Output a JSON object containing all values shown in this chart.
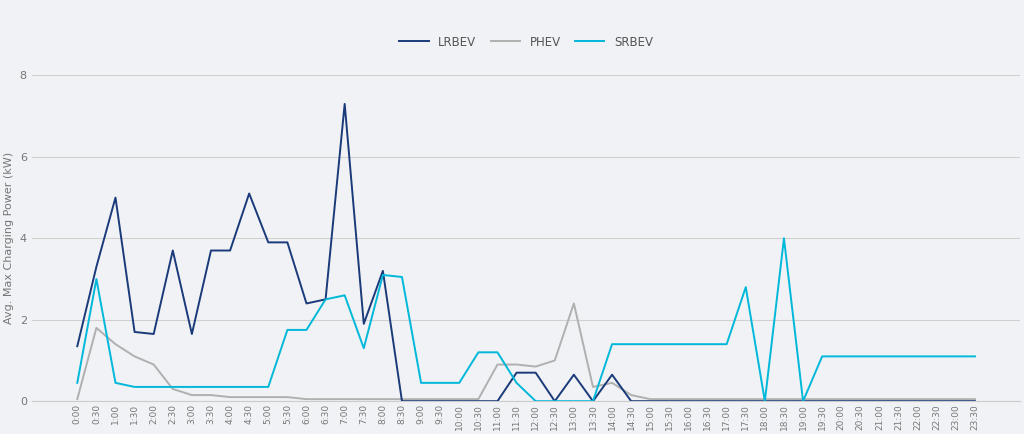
{
  "times": [
    "0:00",
    "0:30",
    "1:00",
    "1:30",
    "2:00",
    "2:30",
    "3:00",
    "3:30",
    "4:00",
    "4:30",
    "5:00",
    "5:30",
    "6:00",
    "6:30",
    "7:00",
    "7:30",
    "8:00",
    "8:30",
    "9:00",
    "9:30",
    "10:00",
    "10:30",
    "11:00",
    "11:30",
    "12:00",
    "12:30",
    "13:00",
    "13:30",
    "14:00",
    "14:30",
    "15:00",
    "15:30",
    "16:00",
    "16:30",
    "17:00",
    "17:30",
    "18:00",
    "18:30",
    "19:00",
    "19:30",
    "20:00",
    "20:30",
    "21:00",
    "21:30",
    "22:00",
    "22:30",
    "23:00",
    "23:30"
  ],
  "LRBEV": [
    1.35,
    3.3,
    5.0,
    1.7,
    1.65,
    3.7,
    1.65,
    3.7,
    3.7,
    5.1,
    3.9,
    3.9,
    2.4,
    2.5,
    7.3,
    1.9,
    3.2,
    0.0,
    0.0,
    0.0,
    0.0,
    0.0,
    0.0,
    0.7,
    0.7,
    0.0,
    0.65,
    0.0,
    0.65,
    0.0,
    0.0,
    0.0,
    0.0,
    0.0,
    0.0,
    0.0,
    0.0,
    0.0,
    0.0,
    0.0,
    0.0,
    0.0,
    0.0,
    0.0,
    0.0,
    0.0,
    0.0,
    0.0
  ],
  "PHEV": [
    0.05,
    1.8,
    1.4,
    1.1,
    0.9,
    0.3,
    0.15,
    0.15,
    0.1,
    0.1,
    0.1,
    0.1,
    0.05,
    0.05,
    0.05,
    0.05,
    0.05,
    0.05,
    0.05,
    0.05,
    0.05,
    0.05,
    0.9,
    0.9,
    0.85,
    1.0,
    2.4,
    0.35,
    0.45,
    0.15,
    0.05,
    0.05,
    0.05,
    0.05,
    0.05,
    0.05,
    0.05,
    0.05,
    0.05,
    0.05,
    0.05,
    0.05,
    0.05,
    0.05,
    0.05,
    0.05,
    0.05,
    0.05
  ],
  "SRBEV": [
    0.45,
    3.0,
    0.45,
    0.35,
    0.35,
    0.35,
    0.35,
    0.35,
    0.35,
    0.35,
    0.35,
    1.75,
    1.75,
    2.5,
    2.6,
    1.3,
    3.1,
    3.05,
    0.45,
    0.45,
    0.45,
    1.2,
    1.2,
    0.45,
    0.0,
    0.0,
    0.0,
    0.0,
    1.4,
    1.4,
    1.4,
    1.4,
    1.4,
    1.4,
    1.4,
    2.8,
    0.0,
    4.0,
    0.0,
    1.1,
    1.1,
    1.1,
    1.1,
    1.1,
    1.1,
    1.1,
    1.1,
    1.1
  ],
  "lrbev_color": "#1a3a7a",
  "phev_color": "#b0b0b0",
  "srbev_color": "#00b8d9",
  "ylabel": "Avg. Max Charging Power (kW)",
  "ylim": [
    0,
    8
  ],
  "yticks": [
    0,
    2,
    4,
    6,
    8
  ],
  "background_color": "#f0f2f5",
  "plot_bg_color": "#f0f2f5",
  "grid_color": "#d0d0d0"
}
